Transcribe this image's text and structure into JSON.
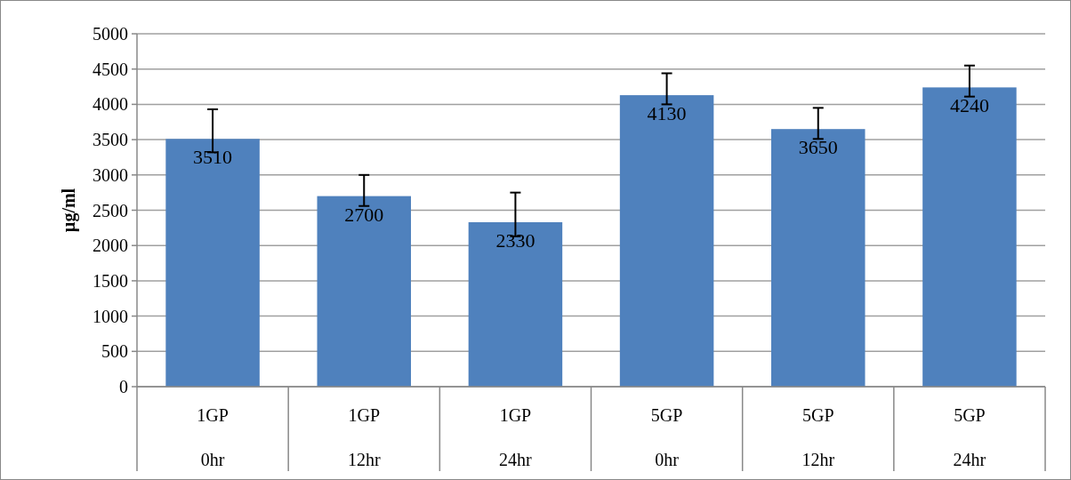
{
  "chart_data": {
    "type": "bar",
    "ylabel": "µg/ml",
    "categories": [
      "1GP\n0hr",
      "1GP\n12hr",
      "1GP\n24hr",
      "5GP\n0hr",
      "5GP\n12hr",
      "5GP\n24hr"
    ],
    "values": [
      3510,
      2700,
      2330,
      4130,
      3650,
      4240
    ],
    "errors": [
      [
        3320,
        3930
      ],
      [
        2560,
        3000
      ],
      [
        2130,
        2750
      ],
      [
        4000,
        4440
      ],
      [
        3510,
        3950
      ],
      [
        4110,
        4550
      ]
    ],
    "color": "#4f81bd",
    "ylim": [
      0,
      5000
    ],
    "yticks": [
      0,
      500,
      1000,
      1500,
      2000,
      2500,
      3000,
      3500,
      4000,
      4500,
      5000
    ],
    "grid": "y",
    "data_labels": true
  }
}
